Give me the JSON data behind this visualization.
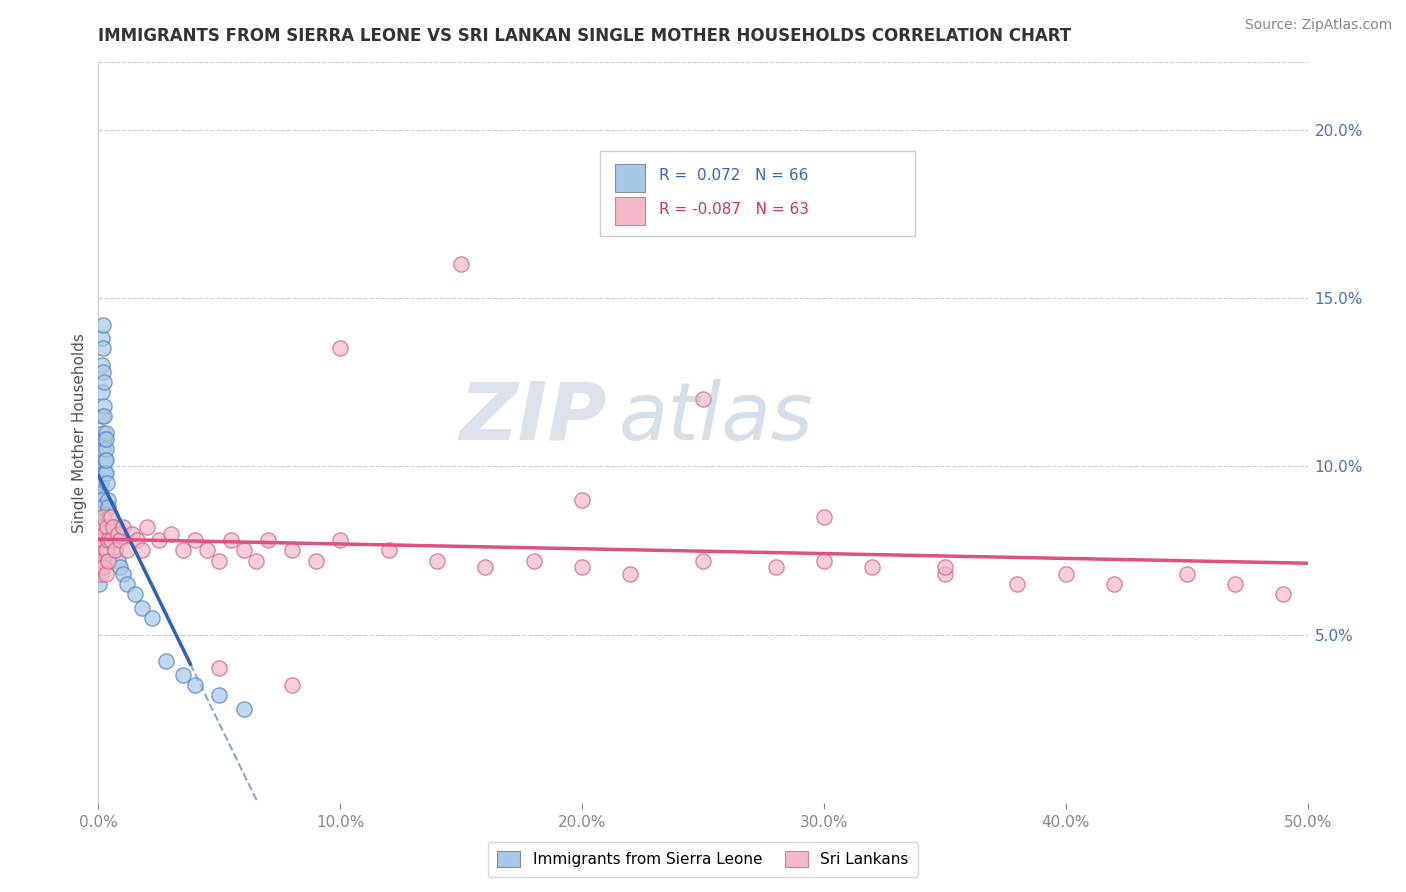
{
  "title": "IMMIGRANTS FROM SIERRA LEONE VS SRI LANKAN SINGLE MOTHER HOUSEHOLDS CORRELATION CHART",
  "source": "Source: ZipAtlas.com",
  "ylabel": "Single Mother Households",
  "xlim": [
    0.0,
    0.5
  ],
  "ylim": [
    0.0,
    0.22
  ],
  "xticks": [
    0.0,
    0.1,
    0.2,
    0.3,
    0.4,
    0.5
  ],
  "xticklabels": [
    "0.0%",
    "10.0%",
    "20.0%",
    "30.0%",
    "40.0%",
    "50.0%"
  ],
  "yticks": [
    0.05,
    0.1,
    0.15,
    0.2
  ],
  "yticklabels": [
    "5.0%",
    "10.0%",
    "15.0%",
    "20.0%"
  ],
  "legend_r1": "R =  0.072",
  "legend_n1": "N = 66",
  "legend_r2": "R = -0.087",
  "legend_n2": "N = 63",
  "blue_color": "#a8c8e8",
  "pink_color": "#f4b8c8",
  "blue_line_color": "#3060c0",
  "pink_line_color": "#e05080",
  "dashed_line_color": "#7090c0",
  "watermark_zip": "ZIP",
  "watermark_atlas": "atlas",
  "series1_label": "Immigrants from Sierra Leone",
  "series2_label": "Sri Lankans",
  "blue_x": [
    0.0002,
    0.0003,
    0.0003,
    0.0004,
    0.0004,
    0.0005,
    0.0005,
    0.0005,
    0.0006,
    0.0006,
    0.0006,
    0.0007,
    0.0007,
    0.0008,
    0.0008,
    0.0009,
    0.001,
    0.001,
    0.001,
    0.0012,
    0.0012,
    0.0013,
    0.0013,
    0.0014,
    0.0015,
    0.0015,
    0.0016,
    0.0016,
    0.0017,
    0.0018,
    0.0018,
    0.002,
    0.002,
    0.002,
    0.0022,
    0.0022,
    0.0024,
    0.0025,
    0.0026,
    0.0028,
    0.003,
    0.003,
    0.003,
    0.0032,
    0.0033,
    0.0035,
    0.0038,
    0.004,
    0.004,
    0.0045,
    0.005,
    0.0055,
    0.006,
    0.007,
    0.008,
    0.009,
    0.01,
    0.012,
    0.015,
    0.018,
    0.022,
    0.028,
    0.035,
    0.04,
    0.05,
    0.06
  ],
  "blue_y": [
    0.075,
    0.09,
    0.08,
    0.072,
    0.065,
    0.085,
    0.078,
    0.07,
    0.092,
    0.088,
    0.08,
    0.095,
    0.085,
    0.09,
    0.082,
    0.088,
    0.095,
    0.088,
    0.082,
    0.092,
    0.085,
    0.09,
    0.082,
    0.088,
    0.138,
    0.13,
    0.122,
    0.115,
    0.11,
    0.105,
    0.098,
    0.142,
    0.135,
    0.128,
    0.125,
    0.118,
    0.115,
    0.108,
    0.102,
    0.098,
    0.11,
    0.105,
    0.098,
    0.108,
    0.102,
    0.095,
    0.09,
    0.088,
    0.082,
    0.085,
    0.078,
    0.082,
    0.078,
    0.075,
    0.072,
    0.07,
    0.068,
    0.065,
    0.062,
    0.058,
    0.055,
    0.042,
    0.038,
    0.035,
    0.032,
    0.028
  ],
  "pink_x": [
    0.001,
    0.001,
    0.0015,
    0.0015,
    0.002,
    0.002,
    0.002,
    0.0025,
    0.003,
    0.003,
    0.0035,
    0.004,
    0.004,
    0.005,
    0.005,
    0.006,
    0.007,
    0.008,
    0.009,
    0.01,
    0.012,
    0.014,
    0.016,
    0.018,
    0.02,
    0.025,
    0.03,
    0.035,
    0.04,
    0.045,
    0.05,
    0.055,
    0.06,
    0.065,
    0.07,
    0.08,
    0.09,
    0.1,
    0.12,
    0.14,
    0.16,
    0.18,
    0.2,
    0.22,
    0.25,
    0.28,
    0.3,
    0.32,
    0.35,
    0.38,
    0.4,
    0.42,
    0.45,
    0.47,
    0.49,
    0.2,
    0.25,
    0.1,
    0.15,
    0.3,
    0.35,
    0.05,
    0.08
  ],
  "pink_y": [
    0.075,
    0.068,
    0.082,
    0.072,
    0.085,
    0.078,
    0.07,
    0.08,
    0.075,
    0.068,
    0.082,
    0.078,
    0.072,
    0.085,
    0.078,
    0.082,
    0.075,
    0.08,
    0.078,
    0.082,
    0.075,
    0.08,
    0.078,
    0.075,
    0.082,
    0.078,
    0.08,
    0.075,
    0.078,
    0.075,
    0.072,
    0.078,
    0.075,
    0.072,
    0.078,
    0.075,
    0.072,
    0.078,
    0.075,
    0.072,
    0.07,
    0.072,
    0.07,
    0.068,
    0.072,
    0.07,
    0.072,
    0.07,
    0.068,
    0.065,
    0.068,
    0.065,
    0.068,
    0.065,
    0.062,
    0.09,
    0.12,
    0.135,
    0.16,
    0.085,
    0.07,
    0.04,
    0.035
  ]
}
